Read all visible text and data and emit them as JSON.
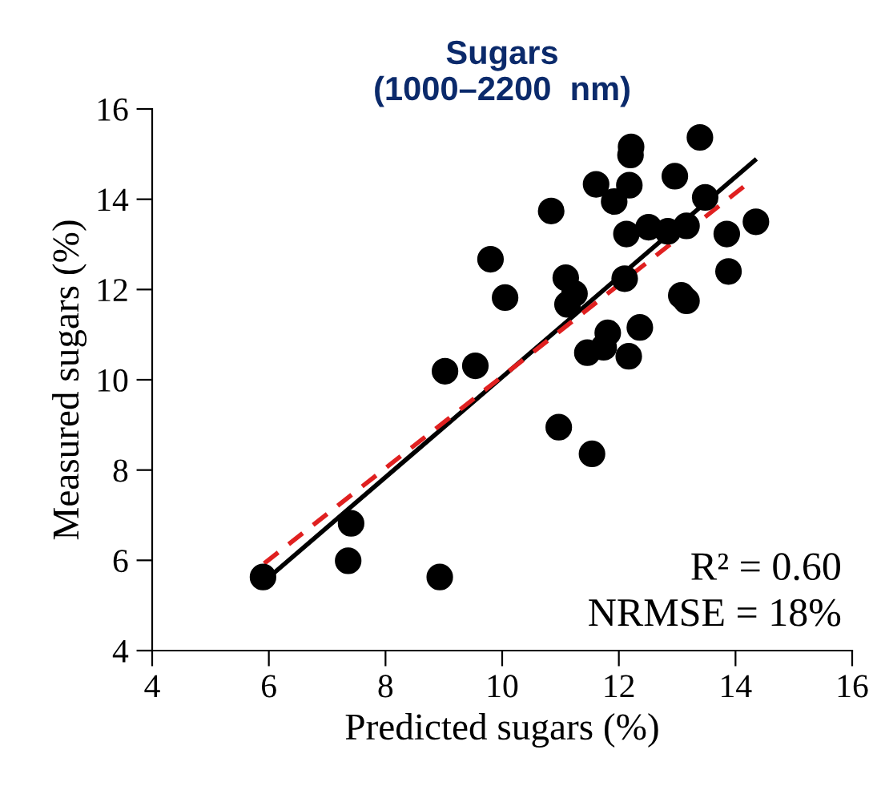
{
  "chart_data": {
    "type": "scatter",
    "title": "Sugars\n(1000–2200  nm)",
    "xlabel": "Predicted sugars (%)",
    "ylabel": "Measured sugars (%)",
    "xlim": [
      4,
      16
    ],
    "ylim": [
      4,
      16
    ],
    "xticks": [
      4,
      6,
      8,
      10,
      12,
      14,
      16
    ],
    "yticks": [
      4,
      6,
      8,
      10,
      12,
      14,
      16
    ],
    "grid": false,
    "series": [
      {
        "marker": "circle",
        "color": "#000000",
        "x": [
          5.9,
          7.41,
          7.36,
          8.93,
          9.02,
          9.54,
          9.8,
          10.05,
          10.84,
          10.97,
          11.09,
          11.24,
          11.12,
          11.54,
          11.46,
          11.74,
          11.81,
          11.61,
          11.92,
          12.18,
          12.21,
          12.2,
          12.13,
          12.1,
          12.17,
          12.36,
          12.51,
          12.84,
          12.96,
          13.16,
          13.07,
          13.16,
          13.39,
          13.48,
          13.85,
          13.88,
          14.35
        ],
        "values": [
          5.63,
          6.82,
          5.99,
          5.63,
          10.19,
          10.31,
          12.67,
          11.82,
          13.74,
          8.95,
          12.26,
          11.91,
          11.67,
          8.36,
          10.6,
          10.72,
          11.04,
          14.33,
          13.95,
          14.31,
          15.16,
          14.98,
          13.23,
          12.24,
          10.52,
          11.16,
          13.38,
          13.29,
          14.51,
          13.41,
          11.87,
          11.75,
          15.37,
          14.04,
          13.23,
          12.4,
          13.5
        ]
      },
      {
        "type": "line",
        "color": "#000000",
        "line_style": "solid",
        "x": [
          6.06,
          14.33
        ],
        "values": [
          5.69,
          14.86
        ]
      },
      {
        "type": "line",
        "color": "#e02020",
        "line_style": "dashed",
        "x": [
          5.92,
          14.19
        ],
        "values": [
          5.93,
          14.33
        ]
      }
    ],
    "annotations": [
      "R² = 0.60",
      "NRMSE = 18%"
    ]
  }
}
